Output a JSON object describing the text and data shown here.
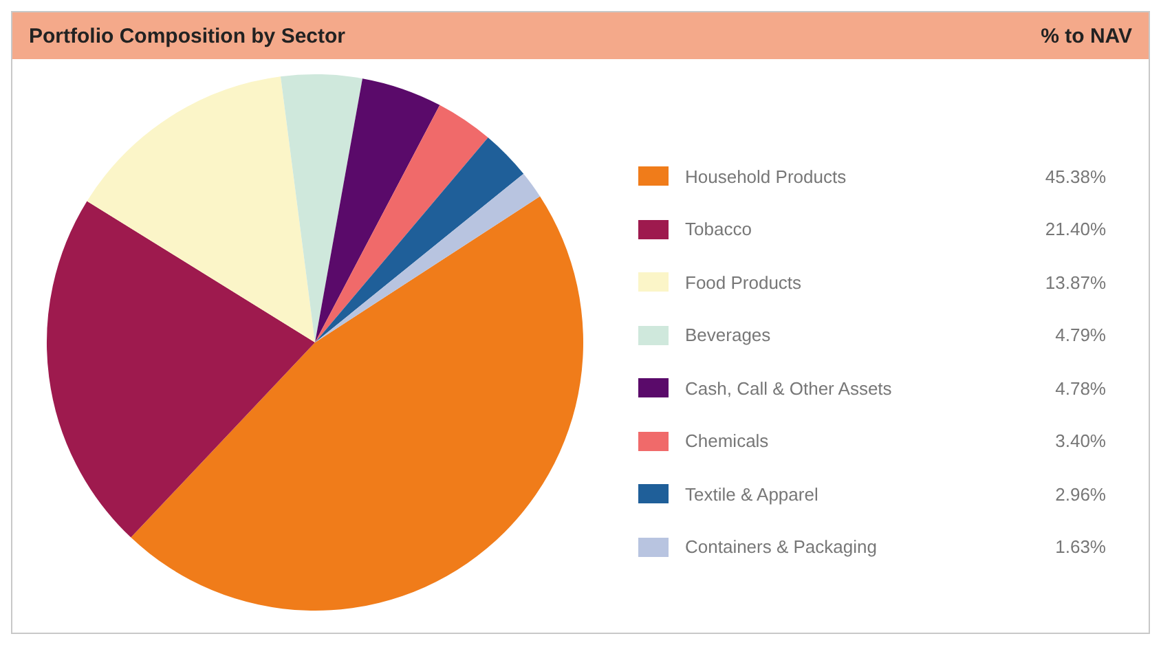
{
  "chart_data": {
    "type": "pie",
    "title": "Portfolio Composition by Sector",
    "legend_title": "% to NAV",
    "categories": [
      "Household Products",
      "Tobacco",
      "Food Products",
      "Beverages",
      "Cash, Call & Other Assets",
      "Chemicals",
      "Textile & Apparel",
      "Containers & Packaging"
    ],
    "values": [
      45.38,
      21.4,
      13.87,
      4.79,
      4.78,
      3.4,
      2.96,
      1.63
    ],
    "colors": [
      "#f07c1a",
      "#9e1a4e",
      "#fbf5c8",
      "#cfe8dc",
      "#5a0a6a",
      "#f06a6a",
      "#1f5f99",
      "#b8c4e0"
    ],
    "value_labels": [
      "45.38%",
      "21.40%",
      "13.87%",
      "4.79%",
      "4.78%",
      "3.40%",
      "2.96%",
      "1.63%"
    ],
    "legend": "right"
  }
}
